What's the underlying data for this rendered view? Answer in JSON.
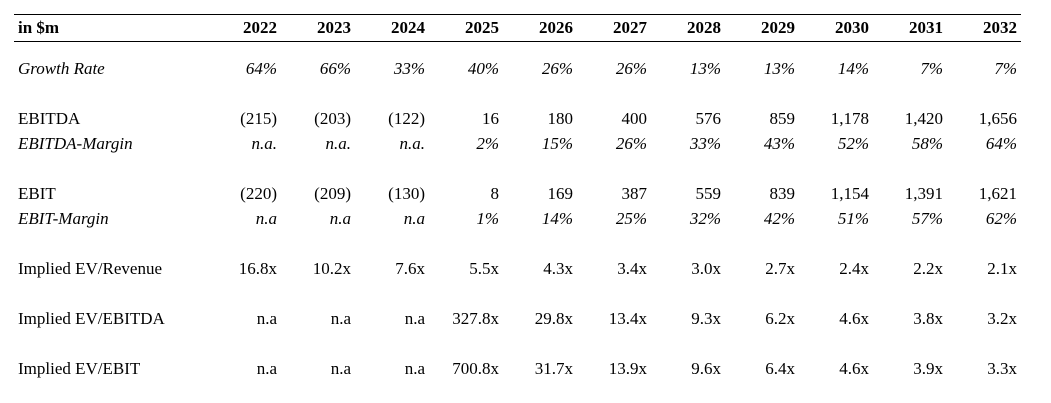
{
  "table": {
    "header_label": "in $m",
    "years": [
      "2022",
      "2023",
      "2024",
      "2025",
      "2026",
      "2027",
      "2028",
      "2029",
      "2030",
      "2031",
      "2032"
    ],
    "rows": {
      "growth_rate": {
        "label": "Growth Rate",
        "values": [
          "64%",
          "66%",
          "33%",
          "40%",
          "26%",
          "26%",
          "13%",
          "13%",
          "14%",
          "7%",
          "7%"
        ]
      },
      "ebitda": {
        "label": "EBITDA",
        "values": [
          "(215)",
          "(203)",
          "(122)",
          "16",
          "180",
          "400",
          "576",
          "859",
          "1,178",
          "1,420",
          "1,656"
        ]
      },
      "ebitda_margin": {
        "label": "EBITDA-Margin",
        "values": [
          "n.a.",
          "n.a.",
          "n.a.",
          "2%",
          "15%",
          "26%",
          "33%",
          "43%",
          "52%",
          "58%",
          "64%"
        ]
      },
      "ebit": {
        "label": "EBIT",
        "values": [
          "(220)",
          "(209)",
          "(130)",
          "8",
          "169",
          "387",
          "559",
          "839",
          "1,154",
          "1,391",
          "1,621"
        ]
      },
      "ebit_margin": {
        "label": "EBIT-Margin",
        "values": [
          "n.a",
          "n.a",
          "n.a",
          "1%",
          "14%",
          "25%",
          "32%",
          "42%",
          "51%",
          "57%",
          "62%"
        ]
      },
      "ev_revenue": {
        "label": "Implied EV/Revenue",
        "values": [
          "16.8x",
          "10.2x",
          "7.6x",
          "5.5x",
          "4.3x",
          "3.4x",
          "3.0x",
          "2.7x",
          "2.4x",
          "2.2x",
          "2.1x"
        ]
      },
      "ev_ebitda": {
        "label": "Implied EV/EBITDA",
        "values": [
          "n.a",
          "n.a",
          "n.a",
          "327.8x",
          "29.8x",
          "13.4x",
          "9.3x",
          "6.2x",
          "4.6x",
          "3.8x",
          "3.2x"
        ]
      },
      "ev_ebit": {
        "label": "Implied EV/EBIT",
        "values": [
          "n.a",
          "n.a",
          "n.a",
          "700.8x",
          "31.7x",
          "13.9x",
          "9.6x",
          "6.4x",
          "4.6x",
          "3.9x",
          "3.3x"
        ]
      }
    }
  }
}
